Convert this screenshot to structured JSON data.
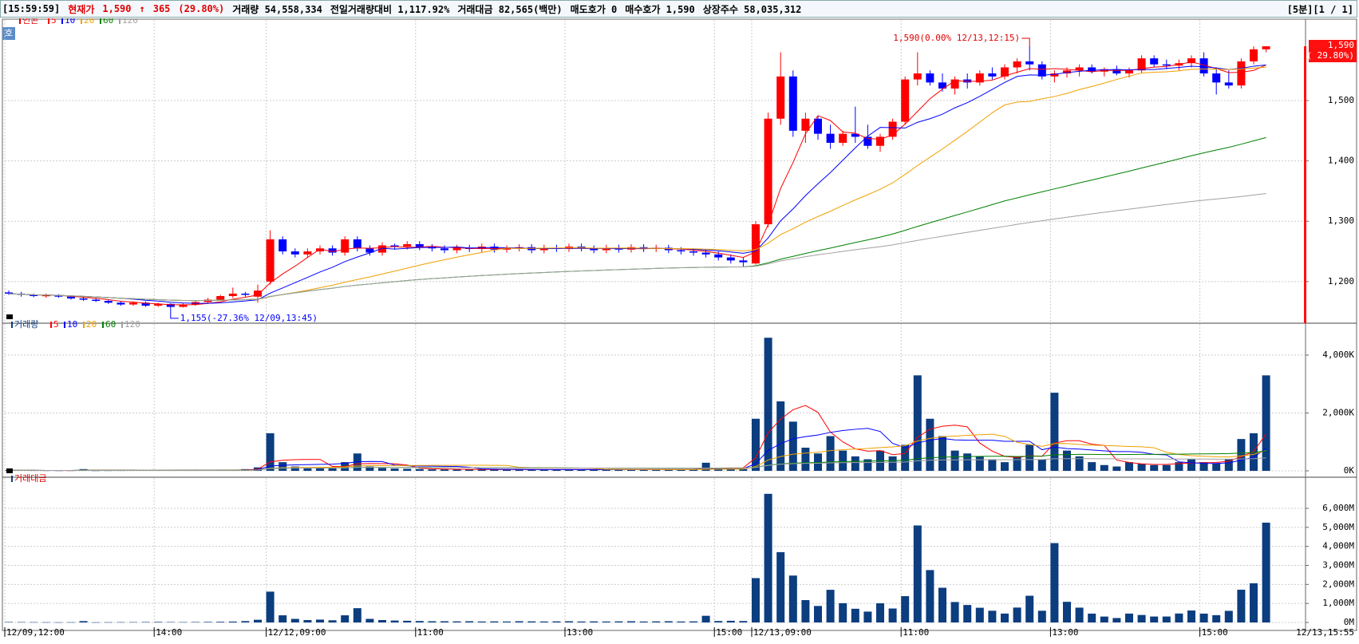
{
  "header": {
    "time": "[15:59:59]",
    "label": "현재가",
    "price": "1,590",
    "arrow": "↑",
    "change": "365",
    "change_pct": "(29.80%)",
    "items": [
      "거래량 54,558,334",
      "전일거래량대비 1,117.92%",
      "거래대금 82,565(백만)",
      "매도호가 0",
      "매수호가 1,590",
      "상장주수 58,035,312"
    ],
    "right": "[5분][1 / 1]",
    "button": "호"
  },
  "chart_data": [
    {
      "type": "candlestick",
      "legend_name": "인콘",
      "ma_periods": [
        5,
        10,
        20,
        60,
        120
      ],
      "ma_colors": [
        "#ff0000",
        "#0000ff",
        "#f0a000",
        "#008000",
        "#a0a0a0"
      ],
      "up_color": "#ff0000",
      "down_color": "#0000ff",
      "grid": true,
      "open": [
        1182,
        1180,
        1178,
        1176,
        1177,
        1175,
        1172,
        1170,
        1168,
        1165,
        1162,
        1165,
        1160,
        1163,
        1158,
        1162,
        1166,
        1170,
        1176,
        1180,
        1175,
        1200,
        1270,
        1250,
        1245,
        1250,
        1255,
        1248,
        1270,
        1255,
        1248,
        1260,
        1258,
        1262,
        1257,
        1255,
        1252,
        1256,
        1254,
        1258,
        1253,
        1255,
        1257,
        1252,
        1256,
        1254,
        1258,
        1255,
        1252,
        1256,
        1253,
        1257,
        1254,
        1256,
        1252,
        1250,
        1248,
        1245,
        1240,
        1235,
        1230,
        1295,
        1470,
        1540,
        1450,
        1470,
        1445,
        1430,
        1445,
        1440,
        1425,
        1440,
        1465,
        1535,
        1545,
        1530,
        1520,
        1535,
        1530,
        1545,
        1540,
        1555,
        1565,
        1560,
        1540,
        1545,
        1550,
        1555,
        1548,
        1552,
        1545,
        1550,
        1570,
        1560,
        1558,
        1562,
        1570,
        1545,
        1530,
        1525,
        1565,
        1585
      ],
      "high": [
        1185,
        1183,
        1180,
        1180,
        1179,
        1177,
        1175,
        1172,
        1170,
        1168,
        1167,
        1167,
        1165,
        1164,
        1164,
        1168,
        1173,
        1178,
        1190,
        1183,
        1195,
        1285,
        1275,
        1255,
        1255,
        1260,
        1260,
        1275,
        1275,
        1260,
        1265,
        1263,
        1267,
        1267,
        1262,
        1260,
        1261,
        1261,
        1263,
        1263,
        1260,
        1262,
        1262,
        1261,
        1261,
        1263,
        1263,
        1260,
        1261,
        1261,
        1262,
        1262,
        1261,
        1261,
        1257,
        1255,
        1253,
        1250,
        1245,
        1240,
        1300,
        1480,
        1580,
        1550,
        1480,
        1475,
        1460,
        1450,
        1490,
        1460,
        1445,
        1470,
        1540,
        1580,
        1550,
        1545,
        1540,
        1545,
        1550,
        1555,
        1560,
        1570,
        1590,
        1565,
        1550,
        1555,
        1560,
        1560,
        1555,
        1558,
        1555,
        1575,
        1575,
        1568,
        1568,
        1575,
        1580,
        1555,
        1550,
        1570,
        1590,
        1590
      ],
      "low": [
        1178,
        1175,
        1174,
        1173,
        1173,
        1170,
        1168,
        1166,
        1163,
        1160,
        1160,
        1158,
        1158,
        1155,
        1157,
        1160,
        1164,
        1168,
        1173,
        1175,
        1165,
        1195,
        1245,
        1240,
        1240,
        1245,
        1243,
        1243,
        1250,
        1243,
        1243,
        1253,
        1253,
        1252,
        1250,
        1247,
        1247,
        1249,
        1249,
        1248,
        1248,
        1250,
        1247,
        1247,
        1249,
        1249,
        1250,
        1247,
        1247,
        1248,
        1248,
        1249,
        1249,
        1247,
        1245,
        1243,
        1240,
        1235,
        1230,
        1225,
        1228,
        1290,
        1460,
        1440,
        1430,
        1435,
        1420,
        1425,
        1430,
        1420,
        1415,
        1435,
        1460,
        1525,
        1525,
        1515,
        1510,
        1520,
        1525,
        1535,
        1535,
        1545,
        1550,
        1535,
        1530,
        1538,
        1540,
        1545,
        1540,
        1542,
        1538,
        1545,
        1555,
        1552,
        1550,
        1555,
        1540,
        1510,
        1520,
        1520,
        1560,
        1580
      ],
      "close": [
        1180,
        1178,
        1176,
        1177,
        1175,
        1172,
        1170,
        1168,
        1165,
        1162,
        1165,
        1160,
        1163,
        1158,
        1162,
        1166,
        1170,
        1176,
        1180,
        1178,
        1185,
        1270,
        1250,
        1245,
        1250,
        1255,
        1248,
        1270,
        1255,
        1248,
        1260,
        1258,
        1262,
        1257,
        1255,
        1252,
        1256,
        1254,
        1258,
        1253,
        1255,
        1257,
        1252,
        1256,
        1254,
        1258,
        1255,
        1252,
        1256,
        1253,
        1257,
        1254,
        1256,
        1252,
        1250,
        1248,
        1245,
        1240,
        1235,
        1232,
        1295,
        1470,
        1540,
        1450,
        1470,
        1445,
        1430,
        1445,
        1440,
        1425,
        1440,
        1465,
        1535,
        1545,
        1530,
        1520,
        1535,
        1530,
        1545,
        1540,
        1555,
        1565,
        1560,
        1540,
        1545,
        1550,
        1555,
        1548,
        1552,
        1545,
        1550,
        1570,
        1560,
        1558,
        1562,
        1570,
        1545,
        1530,
        1525,
        1565,
        1585,
        1590
      ],
      "ylim": [
        1131,
        1631
      ],
      "yticks": [
        {
          "value": 1200,
          "label": "1,200"
        },
        {
          "value": 1300,
          "label": "1,300"
        },
        {
          "value": 1400,
          "label": "1,400"
        },
        {
          "value": 1500,
          "label": "1,500"
        }
      ],
      "annotations": [
        "1,590(0.00% 12/13,12:15)",
        "1,155(-27.36% 12/09,13:45)"
      ],
      "last_price_label": "1,590",
      "last_change_label": "( 29.80%)"
    },
    {
      "type": "bar",
      "legend_name": "거래량",
      "ma_periods": [
        5,
        10,
        20,
        60,
        120
      ],
      "ma_colors": [
        "#ff0000",
        "#0000ff",
        "#f0a000",
        "#008000",
        "#a0a0a0"
      ],
      "color": "#0b3d7f",
      "grid": true,
      "values": [
        20,
        15,
        12,
        10,
        8,
        10,
        60,
        8,
        10,
        12,
        15,
        20,
        25,
        18,
        15,
        20,
        25,
        30,
        40,
        60,
        120,
        1300,
        300,
        150,
        100,
        120,
        90,
        300,
        600,
        150,
        100,
        80,
        70,
        60,
        50,
        50,
        45,
        50,
        40,
        45,
        40,
        50,
        45,
        40,
        45,
        50,
        40,
        45,
        40,
        45,
        50,
        40,
        45,
        50,
        40,
        45,
        280,
        60,
        70,
        60,
        1800,
        4600,
        2400,
        1700,
        800,
        600,
        1200,
        700,
        500,
        400,
        700,
        500,
        900,
        3300,
        1800,
        1200,
        700,
        600,
        500,
        400,
        300,
        500,
        900,
        400,
        2700,
        700,
        500,
        300,
        200,
        150,
        300,
        250,
        200,
        200,
        300,
        400,
        300,
        250,
        400,
        1100,
        1300,
        3300
      ],
      "ylim": [
        0,
        5020
      ],
      "yticks": [
        {
          "value": 0,
          "label": "0K"
        },
        {
          "value": 2000,
          "label": "2,000K"
        },
        {
          "value": 4000,
          "label": "4,000K"
        }
      ]
    },
    {
      "type": "bar",
      "legend_name": "거래대금",
      "color": "#0b3d7f",
      "grid": true,
      "values": [
        23,
        18,
        14,
        12,
        9,
        12,
        70,
        9,
        12,
        14,
        17,
        23,
        29,
        21,
        17,
        23,
        29,
        35,
        47,
        71,
        141,
        1620,
        375,
        188,
        125,
        150,
        113,
        375,
        750,
        188,
        125,
        100,
        88,
        75,
        63,
        63,
        56,
        63,
        50,
        56,
        50,
        63,
        56,
        50,
        56,
        63,
        50,
        56,
        50,
        56,
        63,
        50,
        56,
        63,
        50,
        56,
        350,
        75,
        87,
        74,
        2331,
        6762,
        3696,
        2465,
        1176,
        867,
        1716,
        1012,
        720,
        570,
        1008,
        733,
        1382,
        5099,
        2754,
        1824,
        1075,
        918,
        773,
        616,
        467,
        783,
        1404,
        616,
        4172,
        1085,
        778,
        464,
        310,
        232,
        465,
        393,
        312,
        312,
        469,
        628,
        464,
        383,
        610,
        1722,
        2061,
        5247
      ],
      "ylim": [
        0,
        7510
      ],
      "yticks": [
        {
          "value": 0,
          "label": "0M"
        },
        {
          "value": 1000,
          "label": "1,000M"
        },
        {
          "value": 2000,
          "label": "2,000M"
        },
        {
          "value": 3000,
          "label": "3,000M"
        },
        {
          "value": 4000,
          "label": "4,000M"
        },
        {
          "value": 5000,
          "label": "5,000M"
        },
        {
          "value": 6000,
          "label": "6,000M"
        }
      ],
      "categories": [
        "12/09,12:00",
        null,
        null,
        null,
        null,
        null,
        null,
        null,
        null,
        null,
        null,
        null,
        "14:00",
        null,
        null,
        null,
        null,
        null,
        null,
        null,
        null,
        "12/12,09:00",
        null,
        null,
        null,
        null,
        null,
        null,
        null,
        null,
        null,
        null,
        null,
        "11:00",
        null,
        null,
        null,
        null,
        null,
        null,
        null,
        null,
        null,
        null,
        null,
        "13:00",
        null,
        null,
        null,
        null,
        null,
        null,
        null,
        null,
        null,
        null,
        null,
        "15:00",
        null,
        null,
        "12/13,09:00",
        null,
        null,
        null,
        null,
        null,
        null,
        null,
        null,
        null,
        null,
        null,
        "11:00",
        null,
        null,
        null,
        null,
        null,
        null,
        null,
        null,
        null,
        null,
        null,
        "13:00",
        null,
        null,
        null,
        null,
        null,
        null,
        null,
        null,
        null,
        null,
        null,
        "15:00",
        null,
        null,
        null,
        null,
        null
      ],
      "x_end_label": "12/13,15:55"
    }
  ]
}
